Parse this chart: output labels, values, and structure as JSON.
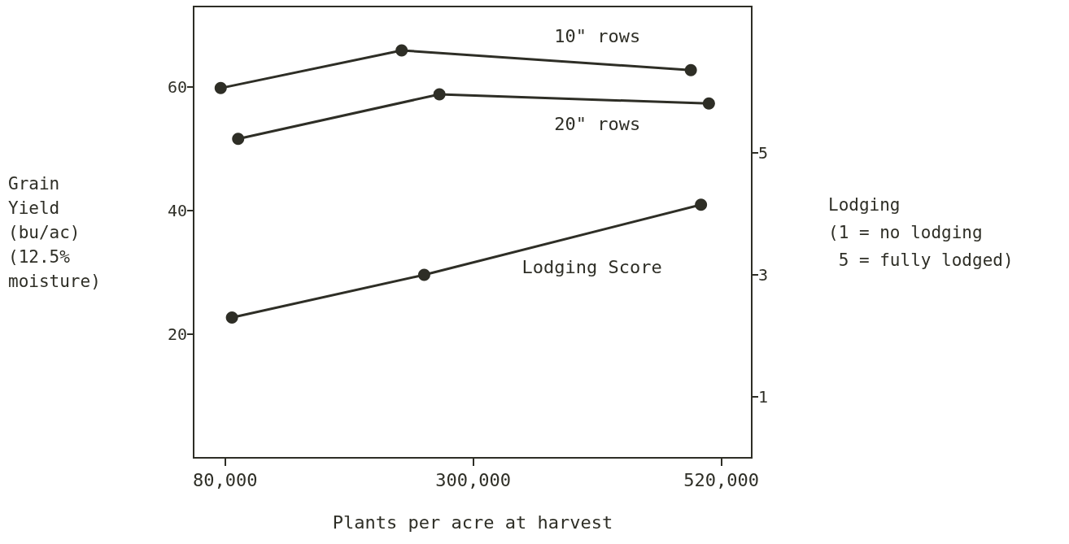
{
  "chart_data": {
    "type": "line",
    "xlabel": "Plants per acre at harvest",
    "ylabel": "Grain\nYield\n(bu/ac)\n(12.5%\nmoisture)",
    "y2label": "Lodging\n(1 = no lodging\n 5 = fully lodged)",
    "series": [
      {
        "name": "10\" rows",
        "color": "#2e2e26",
        "x": [
          76000,
          236500,
          493000
        ],
        "values": [
          59.8,
          65.9,
          62.7
        ]
      },
      {
        "name": "20\" rows",
        "color": "#2e2e26",
        "x": [
          91500,
          270000,
          509000
        ],
        "values": [
          51.6,
          58.8,
          57.3
        ]
      },
      {
        "name": "Lodging Score",
        "color": "#2e2e26",
        "axis": "y2",
        "x": [
          86000,
          256500,
          502000
        ],
        "values": [
          2.3,
          3.0,
          4.15
        ]
      }
    ],
    "xlim": [
      52000,
      547000
    ],
    "xticks": [
      {
        "value": 80000,
        "label": "80,000"
      },
      {
        "value": 300000,
        "label": "300,000"
      },
      {
        "value": 520000,
        "label": "520,000"
      }
    ],
    "ylim": [
      0,
      73
    ],
    "yticks": [
      20,
      40,
      60
    ],
    "y2lim": [
      0,
      7.4
    ],
    "y2ticks": [
      1,
      3,
      5
    ],
    "grid": false,
    "legend": false,
    "marker": "circle",
    "line_style": "solid"
  }
}
